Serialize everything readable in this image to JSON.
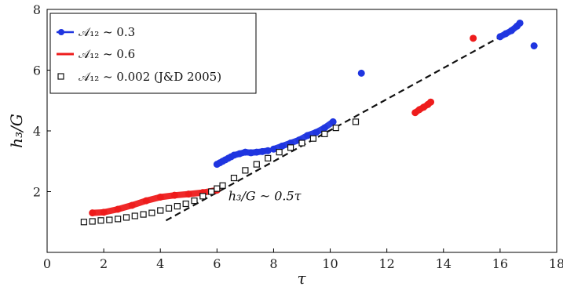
{
  "chart_data": {
    "type": "scatter",
    "title": "",
    "xlabel": "τ",
    "ylabel": "h₃/G",
    "xlim": [
      0,
      18
    ],
    "ylim": [
      0,
      8
    ],
    "xticks": [
      0,
      2,
      4,
      6,
      8,
      10,
      12,
      14,
      16,
      18
    ],
    "yticks": [
      2,
      4,
      6,
      8
    ],
    "grid": false,
    "legend": {
      "placement": "top-left"
    },
    "series": [
      {
        "name": "𝒜₁₂ ~ 0.3",
        "color": "#1f35e0",
        "marker": "circle",
        "segments": [
          {
            "x": [
              6.0,
              6.1,
              6.2,
              6.3,
              6.4,
              6.5
            ],
            "y": [
              2.9,
              2.95,
              3.0,
              3.05,
              3.1,
              3.15
            ]
          },
          {
            "x": [
              6.6,
              6.8,
              7.0,
              7.2,
              7.4,
              7.6,
              7.8
            ],
            "y": [
              3.2,
              3.25,
              3.3,
              3.28,
              3.3,
              3.32,
              3.35
            ]
          },
          {
            "x": [
              8.0,
              8.3,
              8.6,
              8.9,
              9.2,
              9.5,
              9.8,
              10.1
            ],
            "y": [
              3.4,
              3.5,
              3.6,
              3.7,
              3.85,
              3.95,
              4.1,
              4.3
            ]
          },
          {
            "x": [
              11.1
            ],
            "y": [
              5.9
            ]
          },
          {
            "x": [
              16.0,
              16.2,
              16.4,
              16.6,
              16.7
            ],
            "y": [
              7.1,
              7.2,
              7.3,
              7.45,
              7.55
            ]
          },
          {
            "x": [
              17.2
            ],
            "y": [
              6.8
            ]
          }
        ]
      },
      {
        "name": "𝒜₁₂ ~ 0.6",
        "color": "#ee1c1c",
        "marker": "circle",
        "segments": [
          {
            "x": [
              1.6,
              2.0,
              2.5,
              3.0,
              3.5,
              4.0,
              4.5,
              5.0,
              5.5,
              6.0
            ],
            "y": [
              1.3,
              1.32,
              1.42,
              1.55,
              1.7,
              1.82,
              1.88,
              1.92,
              1.97,
              2.05
            ]
          },
          {
            "x": [
              13.0,
              13.15,
              13.3,
              13.45,
              13.55
            ],
            "y": [
              4.6,
              4.7,
              4.78,
              4.87,
              4.95
            ]
          },
          {
            "x": [
              15.05
            ],
            "y": [
              7.05
            ]
          }
        ]
      },
      {
        "name": "𝒜₁₂ ~ 0.002 (J&D 2005)",
        "color": "#111111",
        "marker": "square-open",
        "segments": [
          {
            "x": [
              1.3,
              1.6,
              1.9,
              2.2,
              2.5,
              2.8,
              3.1,
              3.4,
              3.7,
              4.0,
              4.3,
              4.6,
              4.9,
              5.2,
              5.5,
              5.8,
              6.0,
              6.2,
              6.6,
              7.0,
              7.4,
              7.8,
              8.2,
              8.6,
              9.0,
              9.4,
              9.8,
              10.2,
              10.9
            ],
            "y": [
              1.0,
              1.02,
              1.05,
              1.07,
              1.1,
              1.15,
              1.2,
              1.25,
              1.3,
              1.38,
              1.45,
              1.52,
              1.6,
              1.7,
              1.85,
              2.0,
              2.1,
              2.2,
              2.45,
              2.7,
              2.9,
              3.1,
              3.3,
              3.45,
              3.6,
              3.75,
              3.9,
              4.1,
              4.3
            ]
          }
        ]
      }
    ],
    "trend_line": {
      "style": "dashed",
      "x": [
        4.2,
        16.5
      ],
      "y": [
        1.05,
        7.35
      ],
      "label": "h₃/G ~ 0.5τ",
      "label_anchor": [
        6.4,
        1.72
      ]
    }
  }
}
